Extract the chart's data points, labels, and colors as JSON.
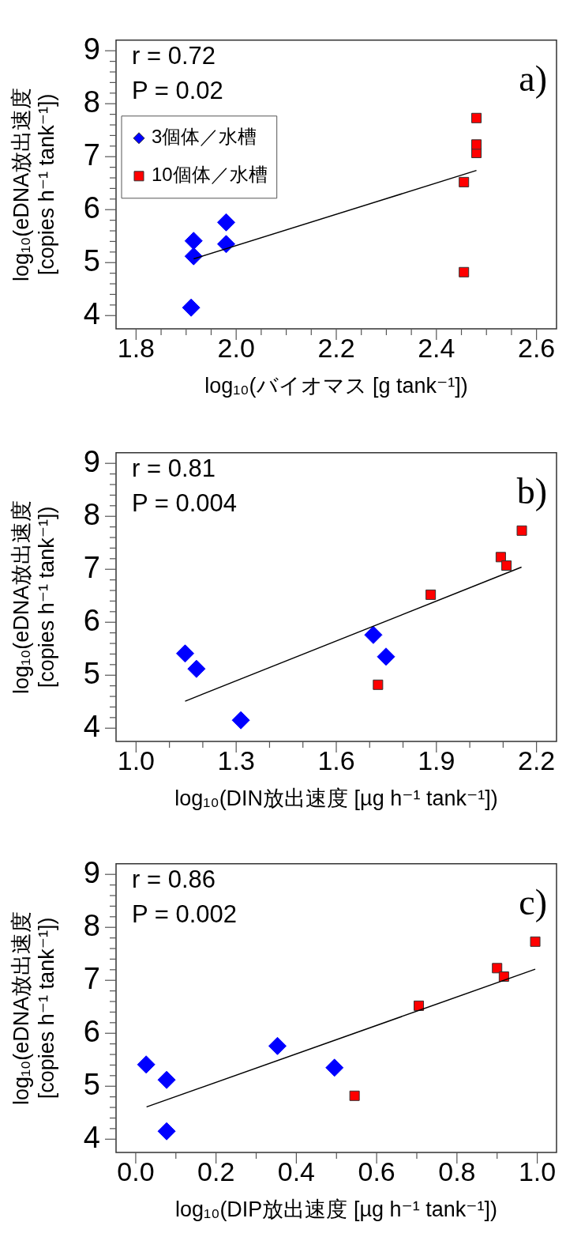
{
  "chart_data": [
    {
      "type": "scatter",
      "annotations": [
        "r = 0.72",
        "P = 0.02",
        "a)"
      ],
      "xlabel": "log₁₀(バイオマス [g tank⁻¹])",
      "ylabel": "log₁₀(eDNA放出速度\n[copies h⁻¹ tank⁻¹])",
      "series": [
        {
          "name": "3個体／水槽",
          "color": "#0000ff",
          "marker": "diamond",
          "x": [
            1.91,
            1.915,
            1.915,
            1.98,
            1.98
          ],
          "values": [
            4.15,
            5.12,
            5.41,
            5.35,
            5.76
          ]
        },
        {
          "name": "10個体／水槽",
          "color": "#ff0000",
          "marker": "square",
          "x": [
            2.455,
            2.455,
            2.48,
            2.48,
            2.48
          ],
          "values": [
            4.82,
            6.52,
            7.07,
            7.23,
            7.73
          ]
        },
        {
          "type": "line",
          "color": "#000000",
          "marker": "none",
          "x": [
            1.915,
            2.48
          ],
          "values": [
            5.07,
            6.74
          ]
        }
      ],
      "xlim": [
        1.76,
        2.64
      ],
      "xticks": [
        1.8,
        {
          "value": 1.85,
          "label": null
        },
        {
          "value": 1.9,
          "label": null
        },
        {
          "value": 1.95,
          "label": null
        },
        {
          "value": 2.0,
          "label": "2.0"
        },
        {
          "value": 2.05,
          "label": null
        },
        {
          "value": 2.1,
          "label": null
        },
        {
          "value": 2.15,
          "label": null
        },
        2.2,
        {
          "value": 2.25,
          "label": null
        },
        {
          "value": 2.3,
          "label": null
        },
        {
          "value": 2.35,
          "label": null
        },
        2.4,
        {
          "value": 2.45,
          "label": null
        },
        {
          "value": 2.5,
          "label": null
        },
        {
          "value": 2.55,
          "label": null
        },
        2.6
      ],
      "ylim": [
        3.75,
        9.2
      ],
      "yticks": [
        4,
        {
          "value": 4.2,
          "label": null
        },
        {
          "value": 4.4,
          "label": null
        },
        {
          "value": 4.6,
          "label": null
        },
        {
          "value": 4.8,
          "label": null
        },
        5,
        {
          "value": 5.2,
          "label": null
        },
        {
          "value": 5.4,
          "label": null
        },
        {
          "value": 5.6,
          "label": null
        },
        {
          "value": 5.8,
          "label": null
        },
        6,
        {
          "value": 6.2,
          "label": null
        },
        {
          "value": 6.4,
          "label": null
        },
        {
          "value": 6.6,
          "label": null
        },
        {
          "value": 6.8,
          "label": null
        },
        7,
        {
          "value": 7.2,
          "label": null
        },
        {
          "value": 7.4,
          "label": null
        },
        {
          "value": 7.6,
          "label": null
        },
        {
          "value": 7.8,
          "label": null
        },
        8,
        {
          "value": 8.2,
          "label": null
        },
        {
          "value": 8.4,
          "label": null
        },
        {
          "value": 8.6,
          "label": null
        },
        {
          "value": 8.8,
          "label": null
        },
        9
      ],
      "legend": "top left"
    },
    {
      "type": "scatter",
      "annotations": [
        "r = 0.81",
        "P = 0.004",
        "b)"
      ],
      "xlabel": "log₁₀(DIN放出速度 [µg h⁻¹ tank⁻¹])",
      "ylabel": "log₁₀(eDNA放出速度\n[copies h⁻¹ tank⁻¹])",
      "series": [
        {
          "color": "#0000ff",
          "marker": "diamond",
          "x": [
            1.147,
            1.181,
            1.314,
            1.711,
            1.749
          ],
          "values": [
            5.41,
            5.12,
            4.15,
            5.76,
            5.35
          ]
        },
        {
          "color": "#ff0000",
          "marker": "square",
          "x": [
            1.725,
            1.883,
            2.093,
            2.11,
            2.156
          ],
          "values": [
            4.82,
            6.52,
            7.23,
            7.07,
            7.73
          ]
        },
        {
          "type": "line",
          "color": "#000000",
          "marker": "none",
          "x": [
            1.147,
            2.155
          ],
          "values": [
            4.51,
            7.04
          ]
        }
      ],
      "xlim": [
        0.94,
        2.26
      ],
      "xticks": [
        {
          "value": 1.0,
          "label": "1.0"
        },
        {
          "value": 1.1,
          "label": null
        },
        {
          "value": 1.2,
          "label": null
        },
        1.3,
        {
          "value": 1.4,
          "label": null
        },
        {
          "value": 1.5,
          "label": null
        },
        1.6,
        {
          "value": 1.7,
          "label": null
        },
        {
          "value": 1.8,
          "label": null
        },
        1.9,
        {
          "value": 2.0,
          "label": null
        },
        {
          "value": 2.1,
          "label": null
        },
        2.2
      ],
      "ylim": [
        3.75,
        9.2
      ],
      "yticks": [
        4,
        {
          "value": 4.2,
          "label": null
        },
        {
          "value": 4.4,
          "label": null
        },
        {
          "value": 4.6,
          "label": null
        },
        {
          "value": 4.8,
          "label": null
        },
        5,
        {
          "value": 5.2,
          "label": null
        },
        {
          "value": 5.4,
          "label": null
        },
        {
          "value": 5.6,
          "label": null
        },
        {
          "value": 5.8,
          "label": null
        },
        6,
        {
          "value": 6.2,
          "label": null
        },
        {
          "value": 6.4,
          "label": null
        },
        {
          "value": 6.6,
          "label": null
        },
        {
          "value": 6.8,
          "label": null
        },
        7,
        {
          "value": 7.2,
          "label": null
        },
        {
          "value": 7.4,
          "label": null
        },
        {
          "value": 7.6,
          "label": null
        },
        {
          "value": 7.8,
          "label": null
        },
        8,
        {
          "value": 8.2,
          "label": null
        },
        {
          "value": 8.4,
          "label": null
        },
        {
          "value": 8.6,
          "label": null
        },
        {
          "value": 8.8,
          "label": null
        },
        9
      ]
    },
    {
      "type": "scatter",
      "annotations": [
        "r = 0.86",
        "P = 0.002",
        "c)"
      ],
      "xlabel": "log₁₀(DIP放出速度 [µg h⁻¹ tank⁻¹])",
      "ylabel": "log₁₀(eDNA放出速度\n[copies h⁻¹ tank⁻¹])",
      "series": [
        {
          "color": "#0000ff",
          "marker": "diamond",
          "x": [
            0.026,
            0.077,
            0.077,
            0.353,
            0.495
          ],
          "values": [
            5.41,
            5.12,
            4.15,
            5.76,
            5.35
          ]
        },
        {
          "color": "#ff0000",
          "marker": "square",
          "x": [
            0.545,
            0.705,
            0.9,
            0.917,
            0.995
          ],
          "values": [
            4.82,
            6.52,
            7.23,
            7.07,
            7.73
          ]
        },
        {
          "type": "line",
          "color": "#000000",
          "marker": "none",
          "x": [
            0.027,
            0.995
          ],
          "values": [
            4.61,
            7.21
          ]
        }
      ],
      "xlim": [
        -0.049,
        1.048
      ],
      "xticks": [
        {
          "value": 0.0,
          "label": "0.0"
        },
        {
          "value": 0.1,
          "label": null
        },
        0.2,
        {
          "value": 0.3,
          "label": null
        },
        0.4,
        {
          "value": 0.5,
          "label": null
        },
        0.6,
        {
          "value": 0.7,
          "label": null
        },
        0.8,
        {
          "value": 0.9,
          "label": null
        },
        {
          "value": 1.0,
          "label": "1.0"
        }
      ],
      "ylim": [
        3.75,
        9.2
      ],
      "yticks": [
        4,
        {
          "value": 4.2,
          "label": null
        },
        {
          "value": 4.4,
          "label": null
        },
        {
          "value": 4.6,
          "label": null
        },
        {
          "value": 4.8,
          "label": null
        },
        5,
        {
          "value": 5.2,
          "label": null
        },
        {
          "value": 5.4,
          "label": null
        },
        {
          "value": 5.6,
          "label": null
        },
        {
          "value": 5.8,
          "label": null
        },
        6,
        {
          "value": 6.2,
          "label": null
        },
        {
          "value": 6.4,
          "label": null
        },
        {
          "value": 6.6,
          "label": null
        },
        {
          "value": 6.8,
          "label": null
        },
        7,
        {
          "value": 7.2,
          "label": null
        },
        {
          "value": 7.4,
          "label": null
        },
        {
          "value": 7.6,
          "label": null
        },
        {
          "value": 7.8,
          "label": null
        },
        8,
        {
          "value": 8.2,
          "label": null
        },
        {
          "value": 8.4,
          "label": null
        },
        {
          "value": 8.6,
          "label": null
        },
        {
          "value": 8.8,
          "label": null
        },
        9
      ]
    }
  ]
}
